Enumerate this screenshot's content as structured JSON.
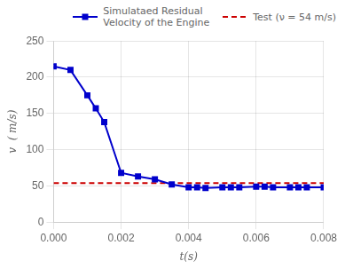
{
  "chart_data": {
    "type": "line",
    "xlabel": "t(s)",
    "ylabel": "v  ( m/s)",
    "x": [
      0.0,
      0.0005,
      0.001,
      0.00125,
      0.0015,
      0.002,
      0.0025,
      0.003,
      0.0035,
      0.004,
      0.00425,
      0.0045,
      0.005,
      0.00525,
      0.0055,
      0.006,
      0.00625,
      0.0065,
      0.007,
      0.00725,
      0.0075,
      0.008
    ],
    "series": [
      {
        "name": "Simulataed Residual\nVelocity of the Engine",
        "color": "#0000cc",
        "marker": "square",
        "line_style": "solid",
        "values": [
          215,
          210,
          175,
          157,
          138,
          68,
          63,
          59,
          52,
          48,
          48,
          47,
          48,
          48,
          48,
          49,
          49,
          48,
          48,
          48,
          48,
          48
        ]
      },
      {
        "name": "Test (ν = 54 m/s)",
        "color": "#cc0000",
        "marker": "none",
        "line_style": "dashed",
        "values": [
          54,
          54,
          54,
          54,
          54,
          54,
          54,
          54,
          54,
          54,
          54,
          54,
          54,
          54,
          54,
          54,
          54,
          54,
          54,
          54,
          54,
          54
        ]
      }
    ],
    "xlim": [
      0,
      0.008
    ],
    "ylim": [
      0,
      250
    ],
    "xticks": [
      {
        "value": 0,
        "label": "0.000"
      },
      {
        "value": 0.002,
        "label": "0.002"
      },
      {
        "value": 0.004,
        "label": "0.004"
      },
      {
        "value": 0.006,
        "label": "0.006"
      },
      {
        "value": 0.008,
        "label": "0.008"
      }
    ],
    "yticks": [
      0,
      50,
      100,
      150,
      200,
      250
    ],
    "grid": true,
    "legend": "upper right"
  }
}
